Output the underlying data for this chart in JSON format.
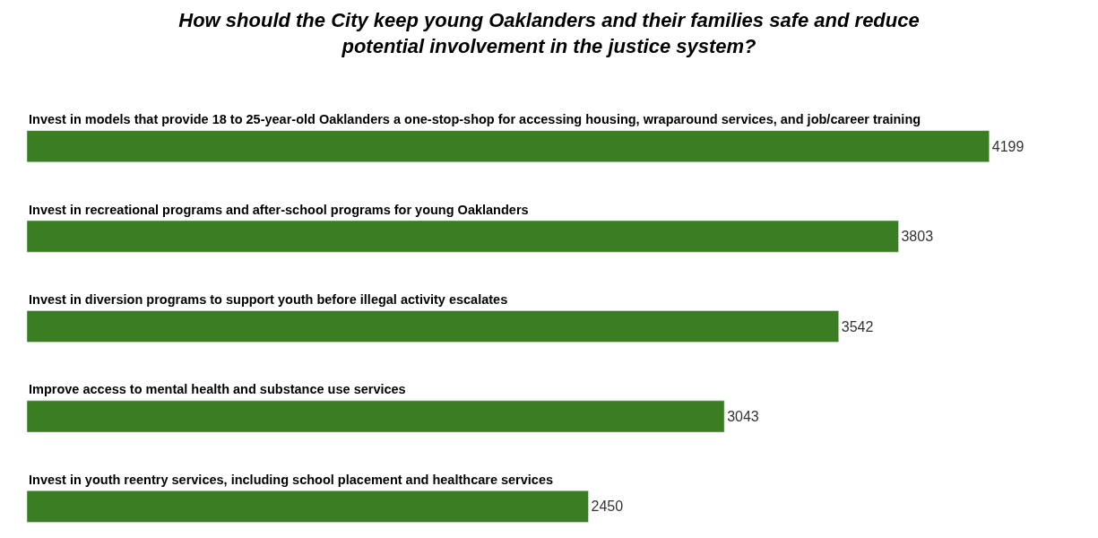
{
  "chart_data": {
    "type": "bar",
    "orientation": "horizontal",
    "title": "How should the City keep young Oaklanders and their families safe and reduce potential involvement in the justice system?",
    "categories": [
      "Invest in models that provide 18 to 25-year-old Oaklanders a one-stop-shop for accessing housing, wraparound services, and job/career training",
      "Invest in recreational programs and after-school programs for young Oaklanders",
      "Invest in diversion programs to support youth before illegal activity escalates",
      "Improve access to mental health and substance use services",
      "Invest in youth reentry services, including school placement and healthcare services"
    ],
    "values": [
      4199,
      3803,
      3542,
      3043,
      2450
    ],
    "color": "#3a7d22",
    "data_labels": true
  }
}
